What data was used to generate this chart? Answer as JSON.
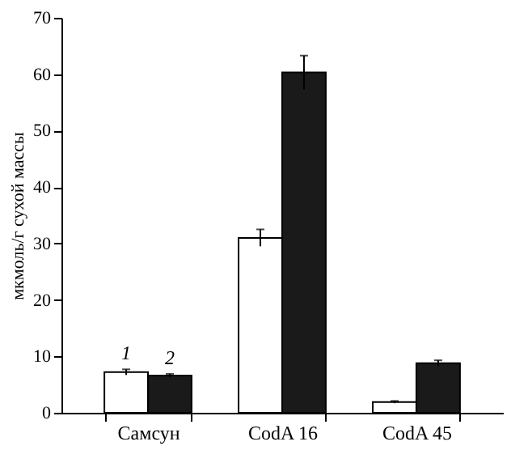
{
  "chart_data": {
    "type": "bar",
    "ylabel": "мкмоль/г сухой массы",
    "categories": [
      "Самсун",
      "CodA 16",
      "CodA 45"
    ],
    "series": [
      {
        "name": "1",
        "color": "#ffffff",
        "values": [
          7.2,
          31,
          1.9
        ],
        "errors": [
          0.5,
          1.5,
          0.2
        ]
      },
      {
        "name": "2",
        "color": "#1a1a1a",
        "values": [
          6.6,
          60.3,
          8.8
        ],
        "errors": [
          0.3,
          3,
          0.5
        ]
      }
    ],
    "ylim": [
      0,
      70
    ],
    "yticks": [
      0,
      10,
      20,
      30,
      40,
      50,
      60,
      70
    ],
    "grid": false
  }
}
